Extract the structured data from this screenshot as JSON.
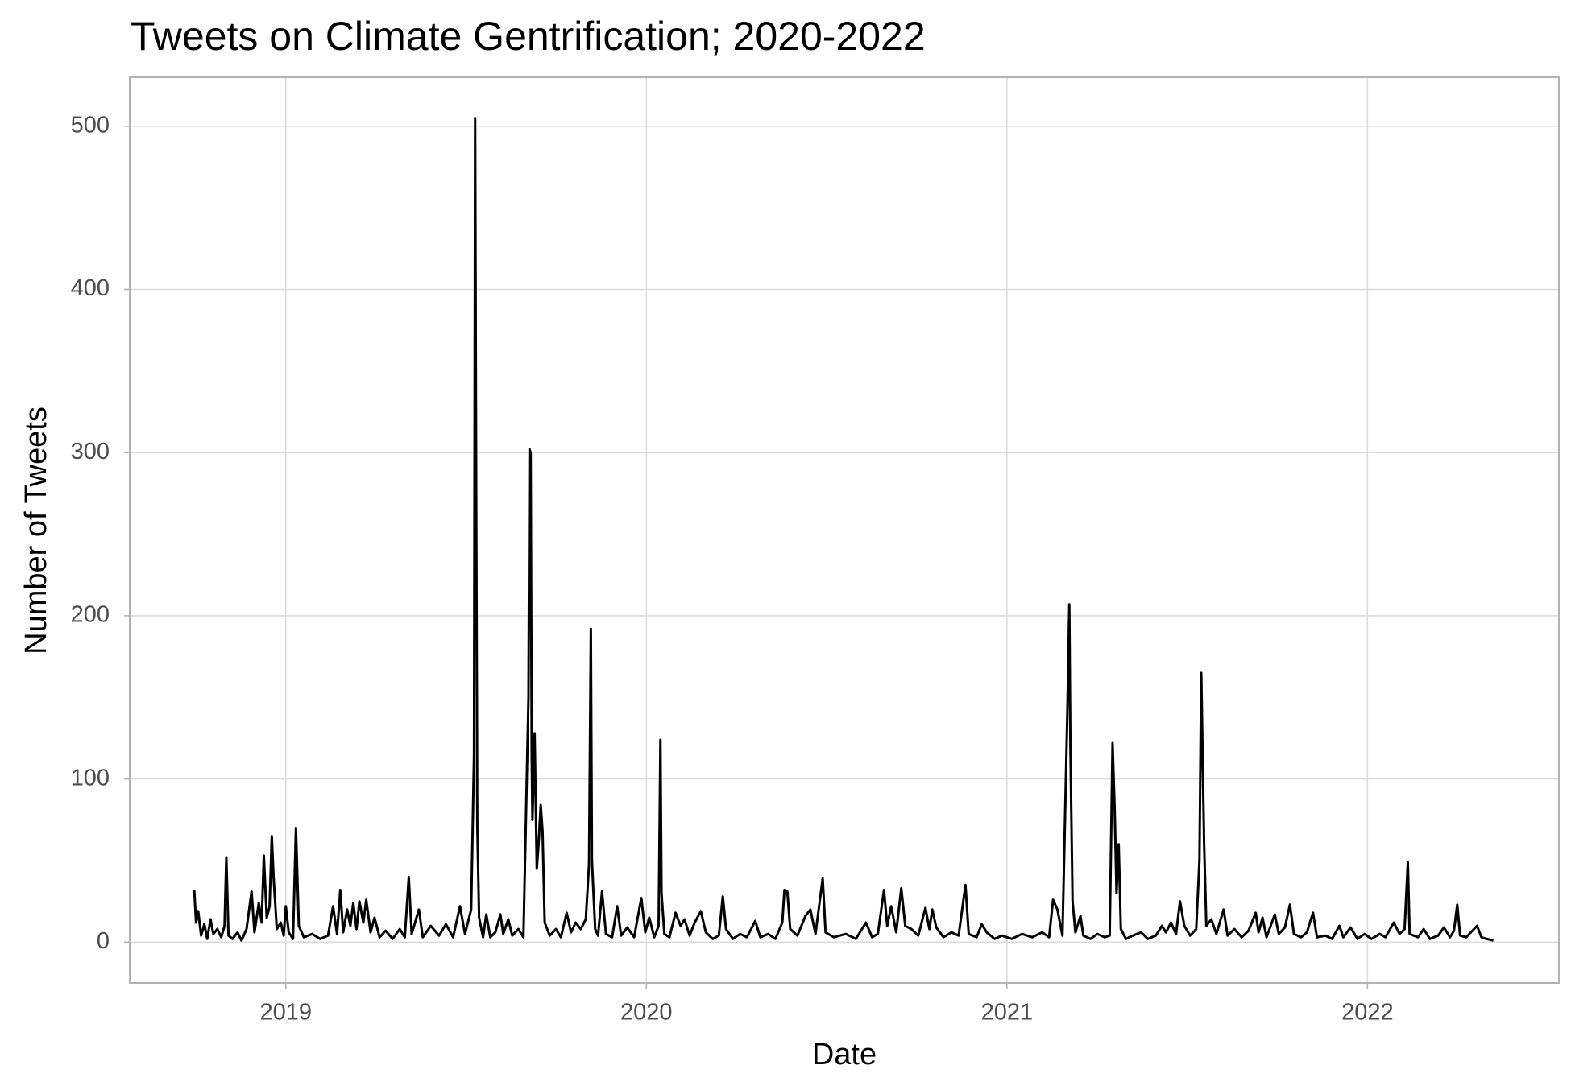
{
  "chart_data": {
    "type": "line",
    "title": "Tweets on Climate Gentrification; 2020-2022",
    "x_label": "Date",
    "y_label": "Number of Tweets",
    "xlim": [
      2018.567,
      2022.531
    ],
    "xticks": [
      2019,
      2020,
      2021,
      2022
    ],
    "ylim": [
      -25,
      530
    ],
    "yticks": [
      0,
      100,
      200,
      300,
      400,
      500
    ],
    "grid": true,
    "series": [
      {
        "color": "#000000",
        "x": [
          2018.746,
          2018.751,
          2018.757,
          2018.765,
          2018.774,
          2018.782,
          2018.791,
          2018.799,
          2018.81,
          2018.821,
          2018.83,
          2018.835,
          2018.841,
          2018.852,
          2018.866,
          2018.877,
          2018.891,
          2018.905,
          2018.913,
          2018.925,
          2018.933,
          2018.939,
          2018.947,
          2018.955,
          2018.961,
          2018.966,
          2018.975,
          2018.986,
          2018.994,
          2019.0,
          2019.008,
          2019.02,
          2019.028,
          2019.036,
          2019.05,
          2019.073,
          2019.095,
          2019.117,
          2019.131,
          2019.142,
          2019.151,
          2019.159,
          2019.17,
          2019.179,
          2019.187,
          2019.196,
          2019.204,
          2019.215,
          2019.223,
          2019.235,
          2019.246,
          2019.26,
          2019.277,
          2019.296,
          2019.316,
          2019.33,
          2019.341,
          2019.349,
          2019.369,
          2019.38,
          2019.402,
          2019.425,
          2019.444,
          2019.464,
          2019.483,
          2019.497,
          2019.514,
          2019.522,
          2019.525,
          2019.528,
          2019.531,
          2019.536,
          2019.547,
          2019.556,
          2019.567,
          2019.581,
          2019.595,
          2019.603,
          2019.617,
          2019.628,
          2019.645,
          2019.659,
          2019.673,
          2019.676,
          2019.679,
          2019.682,
          2019.684,
          2019.69,
          2019.696,
          2019.701,
          2019.707,
          2019.712,
          2019.718,
          2019.732,
          2019.749,
          2019.763,
          2019.779,
          2019.791,
          2019.804,
          2019.818,
          2019.832,
          2019.841,
          2019.846,
          2019.849,
          2019.858,
          2019.866,
          2019.877,
          2019.888,
          2019.905,
          2019.919,
          2019.93,
          2019.947,
          2019.966,
          2019.986,
          2019.997,
          2020.008,
          2020.022,
          2020.034,
          2020.039,
          2020.042,
          2020.05,
          2020.064,
          2020.081,
          2020.095,
          2020.106,
          2020.12,
          2020.134,
          2020.151,
          2020.165,
          2020.184,
          2020.201,
          2020.212,
          2020.221,
          2020.24,
          2020.26,
          2020.279,
          2020.302,
          2020.316,
          2020.338,
          2020.358,
          2020.377,
          2020.383,
          2020.391,
          2020.399,
          2020.419,
          2020.441,
          2020.455,
          2020.469,
          2020.489,
          2020.497,
          2020.52,
          2020.553,
          2020.581,
          2020.609,
          2020.626,
          2020.642,
          2020.659,
          2020.668,
          2020.679,
          2020.693,
          2020.707,
          2020.718,
          2020.735,
          2020.754,
          2020.774,
          2020.785,
          2020.793,
          2020.804,
          2020.824,
          2020.846,
          2020.866,
          2020.885,
          2020.894,
          2020.916,
          2020.93,
          2020.944,
          2020.966,
          2020.986,
          2021.014,
          2021.042,
          2021.07,
          2021.098,
          2021.117,
          2021.128,
          2021.14,
          2021.154,
          2021.168,
          2021.173,
          2021.176,
          2021.182,
          2021.19,
          2021.204,
          2021.212,
          2021.232,
          2021.251,
          2021.271,
          2021.285,
          2021.293,
          2021.299,
          2021.304,
          2021.31,
          2021.316,
          2021.33,
          2021.349,
          2021.372,
          2021.391,
          2021.413,
          2021.43,
          2021.441,
          2021.455,
          2021.469,
          2021.48,
          2021.492,
          2021.508,
          2021.525,
          2021.534,
          2021.539,
          2021.545,
          2021.547,
          2021.553,
          2021.567,
          2021.581,
          2021.601,
          2021.612,
          2021.631,
          2021.651,
          2021.67,
          2021.69,
          2021.698,
          2021.709,
          2021.72,
          2021.743,
          2021.754,
          2021.771,
          2021.785,
          2021.796,
          2021.816,
          2021.832,
          2021.849,
          2021.86,
          2021.883,
          2021.902,
          2021.922,
          2021.933,
          2021.953,
          2021.972,
          2021.992,
          2022.011,
          2022.034,
          2022.05,
          2022.073,
          2022.089,
          2022.103,
          2022.112,
          2022.117,
          2022.14,
          2022.156,
          2022.173,
          2022.196,
          2022.212,
          2022.229,
          2022.24,
          2022.249,
          2022.257,
          2022.274,
          2022.291,
          2022.304,
          2022.316,
          2022.33,
          2022.349
        ],
        "values": [
          32,
          12,
          19,
          4,
          11,
          2,
          14,
          5,
          8,
          3,
          10,
          52,
          4,
          2,
          6,
          1,
          8,
          31,
          6,
          24,
          12,
          53,
          15,
          22,
          65,
          40,
          8,
          12,
          4,
          22,
          6,
          2,
          70,
          10,
          3,
          5,
          2,
          4,
          22,
          5,
          32,
          6,
          20,
          10,
          24,
          8,
          25,
          12,
          26,
          6,
          15,
          3,
          7,
          2,
          8,
          3,
          40,
          5,
          20,
          3,
          10,
          4,
          11,
          3,
          22,
          5,
          20,
          115,
          505,
          275,
          72,
          15,
          3,
          17,
          3,
          6,
          17,
          5,
          14,
          4,
          8,
          3,
          150,
          302,
          300,
          115,
          75,
          128,
          45,
          60,
          84,
          68,
          12,
          4,
          8,
          3,
          18,
          6,
          12,
          8,
          14,
          48,
          192,
          50,
          8,
          4,
          31,
          5,
          3,
          22,
          4,
          9,
          3,
          27,
          6,
          15,
          3,
          10,
          124,
          30,
          5,
          3,
          18,
          10,
          14,
          4,
          12,
          19,
          6,
          2,
          4,
          28,
          8,
          2,
          5,
          3,
          13,
          3,
          5,
          2,
          12,
          32,
          31,
          8,
          4,
          16,
          20,
          5,
          39,
          6,
          3,
          5,
          2,
          12,
          3,
          5,
          32,
          10,
          22,
          6,
          33,
          10,
          8,
          4,
          21,
          8,
          20,
          9,
          3,
          6,
          4,
          35,
          5,
          3,
          11,
          6,
          2,
          4,
          2,
          5,
          3,
          6,
          3,
          26,
          20,
          4,
          145,
          207,
          120,
          25,
          6,
          16,
          4,
          2,
          5,
          3,
          4,
          122,
          80,
          30,
          60,
          8,
          2,
          4,
          6,
          2,
          4,
          10,
          6,
          12,
          5,
          25,
          10,
          4,
          8,
          50,
          165,
          85,
          60,
          10,
          14,
          5,
          20,
          4,
          8,
          3,
          7,
          18,
          6,
          15,
          3,
          17,
          5,
          9,
          23,
          5,
          3,
          6,
          18,
          3,
          4,
          2,
          10,
          3,
          9,
          2,
          5,
          2,
          5,
          3,
          12,
          5,
          8,
          49,
          5,
          3,
          8,
          2,
          4,
          9,
          3,
          7,
          23,
          4,
          3,
          7,
          10,
          3,
          2,
          1
        ]
      }
    ]
  }
}
